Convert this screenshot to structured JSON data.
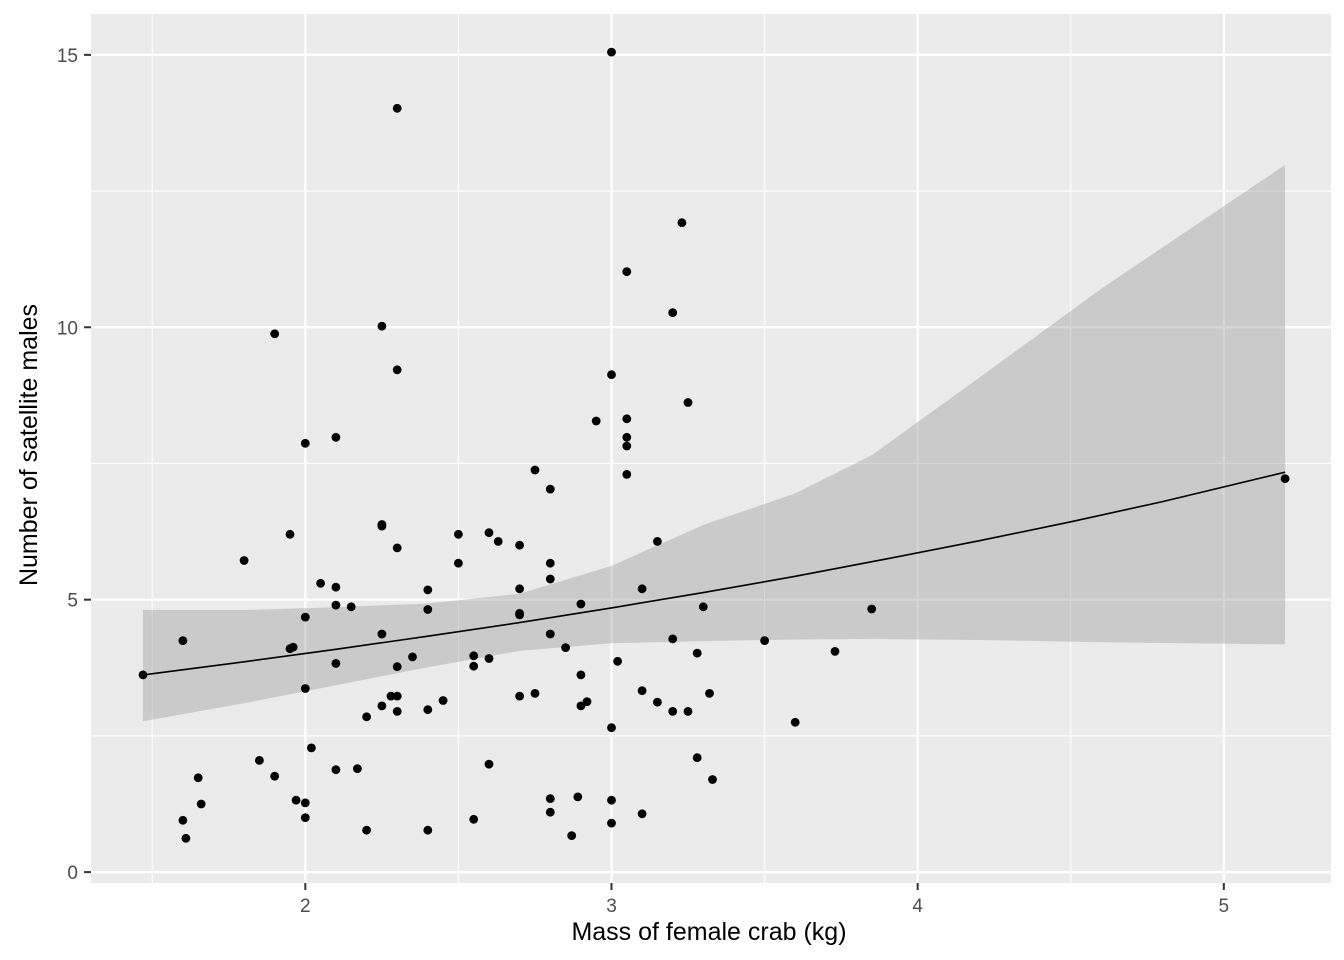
{
  "chart_data": {
    "type": "scatter",
    "title": "",
    "xlabel": "Mass of female crab (kg)",
    "ylabel": "Number of satellite males",
    "xlim": [
      1.3,
      5.35
    ],
    "ylim": [
      -0.2,
      15.75
    ],
    "x_ticks": [
      2,
      3,
      4,
      5
    ],
    "x_tick_labels": [
      "2",
      "3",
      "4",
      "5"
    ],
    "y_ticks": [
      0,
      5,
      10,
      15
    ],
    "y_tick_labels": [
      "0",
      "5",
      "10",
      "15"
    ],
    "grid": true,
    "legend": "none",
    "colors": {
      "panel": "#ebebeb",
      "grid": "#ffffff",
      "points": "#000000",
      "ribbon": "#999999",
      "fit_line": "#000000",
      "ticks": "#333333",
      "tick_labels": "#4d4d4d"
    },
    "points": [
      [
        1.47,
        3.62
      ],
      [
        1.6,
        0.95
      ],
      [
        1.6,
        4.25
      ],
      [
        1.61,
        0.62
      ],
      [
        1.65,
        1.73
      ],
      [
        1.66,
        1.25
      ],
      [
        1.8,
        5.72
      ],
      [
        1.85,
        2.05
      ],
      [
        1.9,
        1.76
      ],
      [
        1.9,
        9.88
      ],
      [
        1.95,
        4.1
      ],
      [
        1.95,
        6.2
      ],
      [
        1.96,
        4.13
      ],
      [
        1.97,
        1.32
      ],
      [
        2.0,
        1.0
      ],
      [
        2.0,
        1.27
      ],
      [
        2.0,
        3.37
      ],
      [
        2.0,
        4.68
      ],
      [
        2.0,
        7.87
      ],
      [
        2.02,
        2.28
      ],
      [
        2.05,
        5.3
      ],
      [
        2.1,
        1.88
      ],
      [
        2.1,
        3.83
      ],
      [
        2.1,
        4.9
      ],
      [
        2.1,
        5.23
      ],
      [
        2.1,
        7.98
      ],
      [
        2.15,
        4.87
      ],
      [
        2.17,
        1.9
      ],
      [
        2.2,
        0.77
      ],
      [
        2.2,
        2.85
      ],
      [
        2.25,
        3.05
      ],
      [
        2.25,
        4.37
      ],
      [
        2.25,
        6.35
      ],
      [
        2.25,
        6.38
      ],
      [
        2.25,
        10.02
      ],
      [
        2.28,
        3.23
      ],
      [
        2.3,
        2.95
      ],
      [
        2.3,
        3.23
      ],
      [
        2.3,
        3.77
      ],
      [
        2.3,
        5.95
      ],
      [
        2.3,
        9.22
      ],
      [
        2.3,
        14.02
      ],
      [
        2.35,
        3.95
      ],
      [
        2.4,
        0.77
      ],
      [
        2.4,
        2.98
      ],
      [
        2.4,
        4.82
      ],
      [
        2.4,
        5.18
      ],
      [
        2.45,
        3.15
      ],
      [
        2.5,
        5.67
      ],
      [
        2.5,
        6.2
      ],
      [
        2.55,
        0.97
      ],
      [
        2.55,
        3.78
      ],
      [
        2.55,
        3.97
      ],
      [
        2.6,
        1.98
      ],
      [
        2.6,
        3.92
      ],
      [
        2.6,
        6.23
      ],
      [
        2.63,
        6.07
      ],
      [
        2.7,
        3.23
      ],
      [
        2.7,
        4.72
      ],
      [
        2.7,
        4.75
      ],
      [
        2.7,
        5.2
      ],
      [
        2.7,
        6.0
      ],
      [
        2.75,
        3.28
      ],
      [
        2.75,
        7.38
      ],
      [
        2.8,
        1.1
      ],
      [
        2.8,
        1.35
      ],
      [
        2.8,
        4.37
      ],
      [
        2.8,
        5.38
      ],
      [
        2.8,
        5.67
      ],
      [
        2.8,
        7.03
      ],
      [
        2.85,
        4.12
      ],
      [
        2.87,
        0.67
      ],
      [
        2.89,
        1.38
      ],
      [
        2.9,
        3.05
      ],
      [
        2.9,
        3.62
      ],
      [
        2.9,
        4.92
      ],
      [
        2.92,
        3.13
      ],
      [
        2.95,
        8.28
      ],
      [
        3.0,
        0.9
      ],
      [
        3.0,
        1.32
      ],
      [
        3.0,
        2.65
      ],
      [
        3.0,
        9.13
      ],
      [
        3.0,
        15.05
      ],
      [
        3.02,
        3.87
      ],
      [
        3.05,
        7.3
      ],
      [
        3.05,
        7.82
      ],
      [
        3.05,
        7.98
      ],
      [
        3.05,
        8.32
      ],
      [
        3.05,
        11.02
      ],
      [
        3.1,
        1.07
      ],
      [
        3.1,
        3.33
      ],
      [
        3.1,
        5.2
      ],
      [
        3.15,
        3.12
      ],
      [
        3.15,
        6.07
      ],
      [
        3.2,
        2.95
      ],
      [
        3.2,
        4.28
      ],
      [
        3.2,
        10.27
      ],
      [
        3.23,
        11.92
      ],
      [
        3.25,
        2.95
      ],
      [
        3.25,
        8.62
      ],
      [
        3.28,
        2.1
      ],
      [
        3.28,
        4.02
      ],
      [
        3.3,
        4.87
      ],
      [
        3.32,
        3.28
      ],
      [
        3.33,
        1.7
      ],
      [
        3.5,
        4.25
      ],
      [
        3.6,
        2.75
      ],
      [
        3.73,
        4.05
      ],
      [
        3.85,
        4.83
      ],
      [
        5.2,
        7.22
      ]
    ],
    "fit_line": [
      [
        1.47,
        3.62
      ],
      [
        1.8,
        3.86
      ],
      [
        2.1,
        4.09
      ],
      [
        2.4,
        4.33
      ],
      [
        2.7,
        4.58
      ],
      [
        3.0,
        4.85
      ],
      [
        3.3,
        5.13
      ],
      [
        3.6,
        5.43
      ],
      [
        3.9,
        5.75
      ],
      [
        4.2,
        6.08
      ],
      [
        4.5,
        6.43
      ],
      [
        4.8,
        6.8
      ],
      [
        5.2,
        7.34
      ]
    ],
    "confidence_band": [
      [
        1.47,
        2.77,
        4.81
      ],
      [
        1.8,
        3.1,
        4.81
      ],
      [
        2.1,
        3.43,
        4.86
      ],
      [
        2.4,
        3.76,
        4.93
      ],
      [
        2.7,
        4.06,
        5.11
      ],
      [
        3.0,
        4.2,
        5.62
      ],
      [
        3.3,
        4.24,
        6.37
      ],
      [
        3.6,
        4.27,
        6.95
      ],
      [
        3.85,
        4.28,
        7.65
      ],
      [
        4.2,
        4.26,
        9.07
      ],
      [
        4.6,
        4.22,
        10.71
      ],
      [
        5.2,
        4.18,
        12.98
      ]
    ]
  }
}
